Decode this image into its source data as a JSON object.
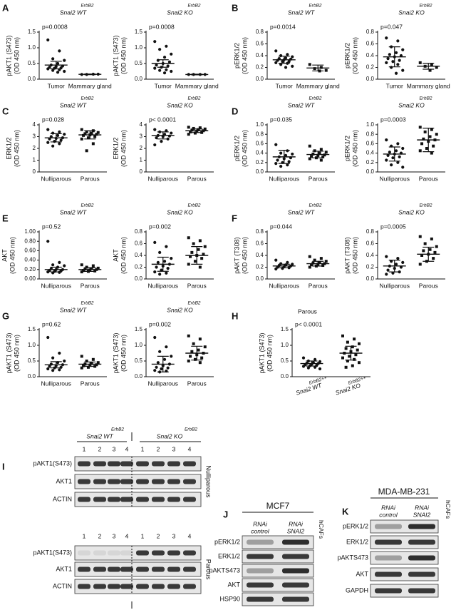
{
  "chart_data": [
    {
      "type": "dotplot",
      "panel": "A",
      "title_sup": "ErbB2",
      "title": "Snai2 WT",
      "ylabel": [
        "pAKT1 (S473)",
        "(OD 450 nm)"
      ],
      "annotation": "p=0.0008",
      "categories": [
        "Tumor",
        "Mammary gland"
      ],
      "markers": [
        "circle",
        "circle"
      ],
      "values": [
        [
          1.25,
          0.9,
          0.65,
          0.6,
          0.5,
          0.45,
          0.42,
          0.4,
          0.38,
          0.36,
          0.35,
          0.33,
          0.3,
          0.28,
          0.25,
          0.22
        ],
        [
          0.15,
          0.16,
          0.15,
          0.16
        ]
      ],
      "means": [
        0.45,
        0.155
      ],
      "errors": [
        0.12,
        0.01
      ],
      "ylim": [
        0,
        1.5
      ],
      "yticks": [
        {
          "value": 0,
          "label": "0.0"
        },
        0.5,
        {
          "value": 1,
          "label": "1.0"
        },
        1.5
      ]
    },
    {
      "type": "dotplot",
      "title_sup": "ErbB2",
      "title": "Snai2 KO",
      "ylabel": [
        "pAKT1 (S473)",
        "(OD 450 nm)"
      ],
      "annotation": "p=0.0008",
      "categories": [
        "Tumor",
        "Mammary gland"
      ],
      "markers": [
        "circle",
        "circle"
      ],
      "values": [
        [
          1.2,
          1.05,
          0.95,
          0.8,
          0.7,
          0.6,
          0.55,
          0.5,
          0.45,
          0.42,
          0.38,
          0.35,
          0.3,
          0.28,
          0.25,
          0.2
        ],
        [
          0.15,
          0.15,
          0.15,
          0.15
        ]
      ],
      "means": [
        0.5,
        0.15
      ],
      "errors": [
        0.12,
        0.01
      ],
      "ylim": [
        0,
        1.5
      ],
      "yticks": [
        {
          "value": 0,
          "label": "0.0"
        },
        0.5,
        {
          "value": 1,
          "label": "1.0"
        },
        1.5
      ]
    },
    {
      "type": "dotplot",
      "panel": "B",
      "title_sup": "ErbB2",
      "title": "Snai2 WT",
      "ylabel": [
        "pERK1/2",
        "(OD 450 nm)"
      ],
      "annotation": "p=0.0014",
      "categories": [
        "Tumor",
        "Mammary gland"
      ],
      "markers": [
        "circle",
        "square"
      ],
      "values": [
        [
          0.48,
          0.42,
          0.4,
          0.38,
          0.36,
          0.35,
          0.34,
          0.33,
          0.32,
          0.3,
          0.3,
          0.28,
          0.27,
          0.25,
          0.22,
          0.2
        ],
        [
          0.25,
          0.2,
          0.18,
          0.15,
          0.14
        ]
      ],
      "means": [
        0.33,
        0.19
      ],
      "errors": [
        0.06,
        0.05
      ],
      "ylim": [
        0,
        0.8
      ],
      "yticks": [
        {
          "value": 0,
          "label": "0.0"
        },
        0.2,
        0.4,
        0.6,
        0.8
      ]
    },
    {
      "type": "dotplot",
      "title_sup": "ErbB2",
      "title": "Snai2 KO",
      "ylabel": [
        "pERK1/2",
        "(OD 450 nm)"
      ],
      "annotation": "p=0.047",
      "categories": [
        "Tumor",
        "Mammary gland"
      ],
      "markers": [
        "circle",
        "square"
      ],
      "values": [
        [
          0.7,
          0.65,
          0.55,
          0.5,
          0.45,
          0.42,
          0.4,
          0.38,
          0.35,
          0.32,
          0.3,
          0.28,
          0.25,
          0.2,
          0.15,
          0.1
        ],
        [
          0.28,
          0.25,
          0.22,
          0.2,
          0.15
        ]
      ],
      "means": [
        0.38,
        0.22
      ],
      "errors": [
        0.17,
        0.05
      ],
      "ylim": [
        0,
        0.8
      ],
      "yticks": [
        {
          "value": 0,
          "label": "0.0"
        },
        0.2,
        0.4,
        0.6,
        0.8
      ]
    },
    {
      "type": "dotplot",
      "panel": "C",
      "title_sup": "ErbB2",
      "title": "Snai2 WT",
      "ylabel": [
        "ERK1/2",
        "(OD 450 nm)"
      ],
      "annotation": "p=0.028",
      "categories": [
        "Nulliparous",
        "Parous"
      ],
      "markers": [
        "circle",
        "square"
      ],
      "values": [
        [
          3.6,
          3.4,
          3.3,
          3.2,
          3.1,
          3.0,
          2.9,
          2.85,
          2.8,
          2.7,
          2.6,
          2.5,
          2.4,
          2.2
        ],
        [
          3.6,
          3.5,
          3.4,
          3.35,
          3.3,
          3.25,
          3.2,
          3.15,
          3.1,
          3.0,
          2.9,
          2.8,
          2.4,
          1.8
        ]
      ],
      "means": [
        2.9,
        3.15
      ],
      "errors": [
        0.35,
        0.35
      ],
      "ylim": [
        0,
        4
      ],
      "yticks": [
        0,
        1,
        2,
        3,
        4
      ]
    },
    {
      "type": "dotplot",
      "title_sup": "ErbB2",
      "title": "Snai2 KO",
      "ylabel": [
        "ERK1/2",
        "(OD 450 nm)"
      ],
      "annotation": "p< 0.0001",
      "categories": [
        "Nulliparous",
        "Parous"
      ],
      "markers": [
        "circle",
        "square"
      ],
      "values": [
        [
          3.6,
          3.5,
          3.4,
          3.3,
          3.2,
          3.1,
          3.05,
          3.0,
          2.9,
          2.8,
          2.6,
          2.3
        ],
        [
          3.8,
          3.75,
          3.7,
          3.65,
          3.6,
          3.55,
          3.5,
          3.45,
          3.4,
          3.35,
          3.3,
          3.2
        ]
      ],
      "means": [
        3.1,
        3.5
      ],
      "errors": [
        0.3,
        0.15
      ],
      "ylim": [
        0,
        4
      ],
      "yticks": [
        0,
        1,
        2,
        3,
        4
      ]
    },
    {
      "type": "dotplot",
      "panel": "D",
      "title_sup": "ErbB2",
      "title": "Snai2 WT",
      "ylabel": [
        "pERK1/2",
        "(OD 450 nm)"
      ],
      "annotation": "p=0.035",
      "categories": [
        "Nulliparous",
        "Parous"
      ],
      "markers": [
        "circle",
        "square"
      ],
      "values": [
        [
          0.58,
          0.45,
          0.4,
          0.38,
          0.35,
          0.32,
          0.3,
          0.28,
          0.25,
          0.22,
          0.2,
          0.18,
          0.15,
          0.12
        ],
        [
          0.55,
          0.48,
          0.45,
          0.42,
          0.4,
          0.38,
          0.36,
          0.35,
          0.33,
          0.32,
          0.3,
          0.28,
          0.25
        ]
      ],
      "means": [
        0.32,
        0.37
      ],
      "errors": [
        0.14,
        0.07
      ],
      "ylim": [
        0,
        1
      ],
      "yticks": [
        {
          "value": 0,
          "label": "0.0"
        },
        0.2,
        0.4,
        0.6,
        0.8,
        {
          "value": 1,
          "label": "1.0"
        }
      ]
    },
    {
      "type": "dotplot",
      "title_sup": "ErbB2",
      "title": "Snai2 KO",
      "ylabel": [
        "pERK1/2",
        "(OD 450 nm)"
      ],
      "annotation": "p=0.0003",
      "categories": [
        "Nulliparous",
        "Parous"
      ],
      "markers": [
        "circle",
        "square"
      ],
      "values": [
        [
          0.68,
          0.6,
          0.55,
          0.5,
          0.45,
          0.42,
          0.4,
          0.38,
          0.35,
          0.32,
          0.3,
          0.25,
          0.2,
          0.15,
          0.1
        ],
        [
          0.95,
          0.9,
          0.85,
          0.8,
          0.75,
          0.7,
          0.68,
          0.65,
          0.6,
          0.55,
          0.5,
          0.45,
          0.4
        ]
      ],
      "means": [
        0.38,
        0.68
      ],
      "errors": [
        0.15,
        0.25
      ],
      "ylim": [
        0,
        1
      ],
      "yticks": [
        {
          "value": 0,
          "label": "0.0"
        },
        0.2,
        0.4,
        0.6,
        0.8,
        {
          "value": 1,
          "label": "1.0"
        }
      ]
    },
    {
      "type": "dotplot",
      "panel": "E",
      "title_sup": "ErbB2",
      "title": "Snai2 WT",
      "ylabel": [
        "AKT",
        "(OD 450 nm)"
      ],
      "annotation": "p=0.52",
      "categories": [
        "Nulliparous",
        "Parous"
      ],
      "markers": [
        "circle",
        "square"
      ],
      "values": [
        [
          0.8,
          0.35,
          0.3,
          0.28,
          0.25,
          0.22,
          0.2,
          0.2,
          0.18,
          0.17,
          0.16,
          0.15,
          0.14,
          0.13
        ],
        [
          0.3,
          0.28,
          0.25,
          0.23,
          0.22,
          0.21,
          0.2,
          0.19,
          0.18,
          0.17,
          0.16,
          0.15
        ]
      ],
      "means": [
        0.2,
        0.2
      ],
      "errors": [
        0.05,
        0.04
      ],
      "ylim": [
        0,
        1
      ],
      "yticks": [
        {
          "value": 0,
          "label": "0.00"
        },
        {
          "value": 0.2,
          "label": "0.20"
        },
        {
          "value": 0.4,
          "label": "0.40"
        },
        {
          "value": 0.6,
          "label": "0.60"
        },
        {
          "value": 0.8,
          "label": "0.80"
        },
        {
          "value": 1,
          "label": "1.00"
        }
      ]
    },
    {
      "type": "dotplot",
      "title_sup": "ErbB2",
      "title": "Snai2 KO",
      "ylabel": [
        "AKT",
        "(OD 450 nm)"
      ],
      "annotation": "p=0.002",
      "categories": [
        "Nulliparous",
        "Parous"
      ],
      "markers": [
        "circle",
        "square"
      ],
      "values": [
        [
          0.62,
          0.55,
          0.45,
          0.35,
          0.3,
          0.28,
          0.25,
          0.22,
          0.2,
          0.18,
          0.15,
          0.12,
          0.1,
          0.08
        ],
        [
          0.7,
          0.65,
          0.6,
          0.55,
          0.5,
          0.45,
          0.42,
          0.4,
          0.38,
          0.35,
          0.3,
          0.25,
          0.2
        ]
      ],
      "means": [
        0.25,
        0.4
      ],
      "errors": [
        0.12,
        0.15
      ],
      "ylim": [
        0,
        0.8
      ],
      "yticks": [
        {
          "value": 0,
          "label": "0.0"
        },
        0.2,
        0.4,
        0.6,
        0.8
      ]
    },
    {
      "type": "dotplot",
      "panel": "F",
      "title_sup": "ErbB2",
      "title": "Snai2 WT",
      "ylabel": [
        "pAKT (T308)",
        "(OD 450 nm)"
      ],
      "annotation": "p=0.044",
      "categories": [
        "Nulliparous",
        "Parous"
      ],
      "markers": [
        "circle",
        "square"
      ],
      "values": [
        [
          0.32,
          0.28,
          0.26,
          0.25,
          0.24,
          0.23,
          0.22,
          0.21,
          0.2,
          0.19,
          0.18,
          0.17
        ],
        [
          0.38,
          0.35,
          0.32,
          0.3,
          0.28,
          0.27,
          0.26,
          0.25,
          0.24,
          0.23,
          0.22,
          0.2
        ]
      ],
      "means": [
        0.22,
        0.26
      ],
      "errors": [
        0.03,
        0.04
      ],
      "ylim": [
        0,
        0.8
      ],
      "yticks": [
        {
          "value": 0,
          "label": "0.0"
        },
        0.2,
        0.4,
        0.6,
        0.8
      ]
    },
    {
      "type": "dotplot",
      "title_sup": "ErbB2",
      "title": "Snai2 KO",
      "ylabel": [
        "pAKT (T308)",
        "(OD 450 nm)"
      ],
      "annotation": "p=0.0005",
      "categories": [
        "Nulliparous",
        "Parous"
      ],
      "markers": [
        "circle",
        "square"
      ],
      "values": [
        [
          0.38,
          0.35,
          0.3,
          0.28,
          0.25,
          0.22,
          0.2,
          0.18,
          0.15,
          0.12,
          0.1,
          0.08
        ],
        [
          0.72,
          0.68,
          0.6,
          0.55,
          0.5,
          0.48,
          0.45,
          0.42,
          0.4,
          0.35,
          0.3,
          0.25
        ]
      ],
      "means": [
        0.22,
        0.42
      ],
      "errors": [
        0.1,
        0.12
      ],
      "ylim": [
        0,
        0.8
      ],
      "yticks": [
        {
          "value": 0,
          "label": "0.0"
        },
        0.2,
        0.4,
        0.6,
        0.8
      ]
    },
    {
      "type": "dotplot",
      "panel": "G",
      "title_sup": "ErbB2",
      "title": "Snai2 WT",
      "ylabel": [
        "pAKT1 (S473)",
        "(OD 450 nm)"
      ],
      "annotation": "p=0.62",
      "categories": [
        "Nulliparous",
        "Parous"
      ],
      "markers": [
        "circle",
        "square"
      ],
      "values": [
        [
          1.25,
          0.75,
          0.6,
          0.5,
          0.45,
          0.4,
          0.38,
          0.35,
          0.33,
          0.3,
          0.28,
          0.25,
          0.22,
          0.2
        ],
        [
          0.65,
          0.55,
          0.5,
          0.45,
          0.42,
          0.4,
          0.38,
          0.36,
          0.35,
          0.33,
          0.3,
          0.28
        ]
      ],
      "means": [
        0.38,
        0.4
      ],
      "errors": [
        0.1,
        0.07
      ],
      "ylim": [
        0,
        1.5
      ],
      "yticks": [
        {
          "value": 0,
          "label": "0.0"
        },
        0.5,
        {
          "value": 1,
          "label": "1.0"
        },
        1.5
      ]
    },
    {
      "type": "dotplot",
      "title_sup": "ErbB2",
      "title": "Snai2 KO",
      "ylabel": [
        "pAKT1 (S473)",
        "(OD 450 nm)"
      ],
      "annotation": "p=0.002",
      "categories": [
        "Nulliparous",
        "Parous"
      ],
      "markers": [
        "circle",
        "square"
      ],
      "values": [
        [
          1.25,
          0.95,
          0.8,
          0.65,
          0.55,
          0.45,
          0.4,
          0.35,
          0.3,
          0.28,
          0.25,
          0.2,
          0.18,
          0.15
        ],
        [
          1.3,
          1.2,
          1.05,
          0.95,
          0.85,
          0.8,
          0.75,
          0.7,
          0.65,
          0.6,
          0.55,
          0.5,
          0.45
        ]
      ],
      "means": [
        0.4,
        0.75
      ],
      "errors": [
        0.25,
        0.22
      ],
      "ylim": [
        0,
        1.5
      ],
      "yticks": [
        {
          "value": 0,
          "label": "0.0"
        },
        0.5,
        {
          "value": 1,
          "label": "1.0"
        },
        1.5
      ]
    },
    {
      "type": "dotplot",
      "panel": "H",
      "subtitle": "Parous",
      "ylabel": [
        "pAKT1 (S473)",
        "(OD 450 nm)"
      ],
      "annotation": "p< 0.0001",
      "categories": [
        "Snai2 WT",
        "Snai2 KO"
      ],
      "category_sups": [
        "ErbB2++",
        "ErbB2++"
      ],
      "markers": [
        "circle",
        "square"
      ],
      "values": [
        [
          0.6,
          0.55,
          0.5,
          0.48,
          0.45,
          0.43,
          0.42,
          0.4,
          0.38,
          0.36,
          0.35,
          0.33,
          0.3,
          0.28,
          0.25
        ],
        [
          1.3,
          1.2,
          1.1,
          1.05,
          0.95,
          0.9,
          0.85,
          0.8,
          0.75,
          0.7,
          0.65,
          0.6,
          0.55,
          0.5,
          0.45,
          0.35,
          0.3
        ]
      ],
      "means": [
        0.42,
        0.75
      ],
      "errors": [
        0.08,
        0.22
      ],
      "ylim": [
        0,
        1.5
      ],
      "yticks": [
        {
          "value": 0,
          "label": "0.0"
        },
        0.5,
        {
          "value": 1,
          "label": "1.0"
        },
        1.5
      ]
    }
  ],
  "blots": {
    "I": {
      "panel": "I",
      "groups": [
        {
          "sup": "ErbB2",
          "label": "Snai2 WT"
        },
        {
          "sup": "ErbB2",
          "label": "Snai2 KO"
        }
      ],
      "blocks": [
        {
          "side": "Nulliparous",
          "lanes": [
            "1",
            "2",
            "3",
            "4",
            "1",
            "2",
            "3",
            "4"
          ],
          "rows": [
            "pAKT1(S473)",
            "AKT1",
            "ACTIN"
          ]
        },
        {
          "side": "Parous",
          "lanes": [
            "1",
            "2",
            "3",
            "4",
            "1",
            "2",
            "3",
            "4"
          ],
          "rows": [
            "pAKT1(S473)",
            "AKT1",
            "ACTIN"
          ]
        }
      ]
    },
    "J": {
      "panel": "J",
      "title": "MCF7",
      "columns": [
        [
          "RNAi",
          "control"
        ],
        [
          "RNAi",
          "SNAI2"
        ]
      ],
      "side": "hCAFs",
      "rows": [
        "pERK1/2",
        "ERK1/2",
        "pAKTS473",
        "AKT",
        "HSP90"
      ]
    },
    "K": {
      "panel": "K",
      "title": "MDA-MB-231",
      "columns": [
        [
          "RNAi",
          "control"
        ],
        [
          "RNAi",
          "SNAI2"
        ]
      ],
      "side": "hCAFs",
      "rows": [
        "pERK1/2",
        "ERK1/2",
        "pAKTS473",
        "AKT",
        "GAPDH"
      ]
    }
  }
}
